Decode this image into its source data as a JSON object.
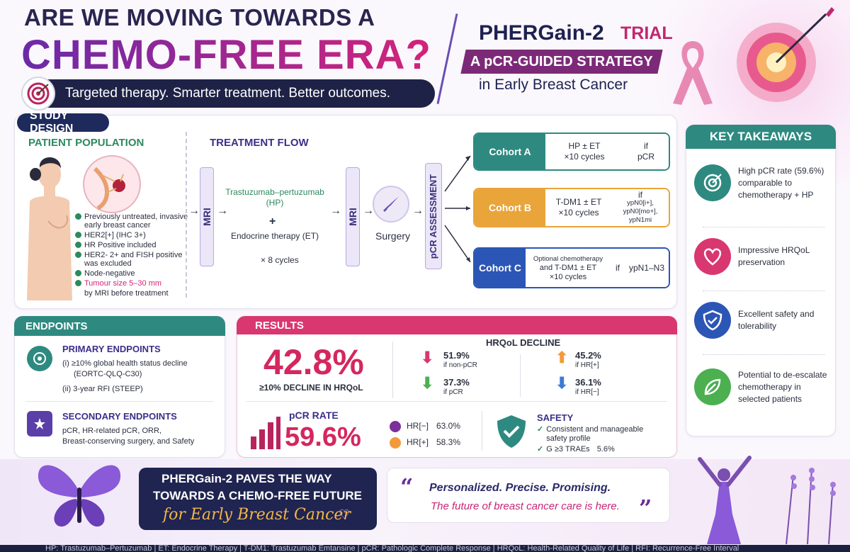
{
  "header": {
    "title_line1": "ARE WE MOVING TOWARDS A",
    "title_line2": "CHEMO-FREE ERA?",
    "tagline": "Targeted therapy. Smarter treatment. Better outcomes.",
    "trial_name": "PHERGain-2",
    "trial_suffix": "TRIAL",
    "strategy": "A pCR-GUIDED STRATEGY",
    "subtitle": "in Early Breast Cancer"
  },
  "study_design": {
    "label": "STUDY DESIGN",
    "patient_population_title": "PATIENT POPULATION",
    "criteria": [
      "Previously untreated, invasive early breast cancer",
      "HER2[+] (IHC 3+)",
      "HR Positive included",
      "HER2- 2+ and FISH positive was excluded",
      "Node-negative"
    ],
    "tumour_size": "Tumour size 5–30 mm",
    "tumour_size_note": "by MRI before treatment",
    "treatment_flow_title": "TREATMENT FLOW",
    "mri": "MRI",
    "hp": "Trastuzumab–pertuzumab (HP)",
    "plus": "+",
    "et": "Endocrine therapy (ET)",
    "cycles": "× 8 cycles",
    "surgery": "Surgery",
    "pcr_assessment": "pCR ASSESSMENT",
    "cohorts": [
      {
        "label": "Cohort A",
        "line1": "HP ± ET",
        "line2": "×10 cycles",
        "cond1": "if",
        "cond2": "pCR",
        "color": "#2e8a80"
      },
      {
        "label": "Cohort B",
        "line1": "T-DM1 ± ET",
        "line2": "×10 cycles",
        "cond1": "if",
        "cond2": "ypN0[i+], ypN0[mo+], ypN1mi",
        "color": "#e9a53a"
      },
      {
        "label": "Cohort C",
        "line1": "Optional chemotherapy",
        "line2": "and T-DM1 ± ET",
        "line3": "×10 cycles",
        "cond1": "if",
        "cond2": "ypN1–N3",
        "color": "#2c56b5"
      }
    ]
  },
  "key_takeaways": {
    "title": "KEY TAKEAWAYS",
    "items": [
      {
        "text": "High pCR rate (59.6%) comparable to chemotherapy + HP",
        "icon": "target-icon",
        "color": "#2e8a80"
      },
      {
        "text": "Impressive HRQoL preservation",
        "icon": "heart-icon",
        "color": "#d9376f"
      },
      {
        "text": "Excellent safety and tolerability",
        "icon": "shield-icon",
        "color": "#2c56b5"
      },
      {
        "text": "Potential to de-escalate chemotherapy in selected patients",
        "icon": "leaf-icon",
        "color": "#4caf50"
      }
    ]
  },
  "endpoints": {
    "title": "ENDPOINTS",
    "primary_title": "PRIMARY ENDPOINTS",
    "primary_1": "(i) ≥10% global health status decline",
    "primary_1b": "(EORTC-QLQ-C30)",
    "primary_2": "(ii) 3-year RFI (STEEP)",
    "secondary_title": "SECONDARY ENDPOINTS",
    "secondary_1": "pCR, HR-related pCR, ORR,",
    "secondary_2": "Breast-conserving surgery, and Safety"
  },
  "results": {
    "title": "RESULTS",
    "hrqol_decline_pct": "42.8%",
    "hrqol_decline_label": "≥10% DECLINE IN HRQoL",
    "hrqol_title": "HRQoL DECLINE",
    "non_pcr_value": "51.9%",
    "non_pcr_label": "if non-pCR",
    "pcr_value": "37.3%",
    "pcr_label": "if pCR",
    "hr_pos_value": "45.2%",
    "hr_pos_label": "if HR[+]",
    "hr_neg_value": "36.1%",
    "hr_neg_label": "if HR[−]",
    "pcr_rate_label": "pCR RATE",
    "pcr_rate": "59.6%",
    "hr_neg_pcr_label": "HR[−]",
    "hr_neg_pcr": "63.0%",
    "hr_pos_pcr_label": "HR[+]",
    "hr_pos_pcr": "58.3%",
    "safety_title": "SAFETY",
    "safety_1": "Consistent and manageable safety profile",
    "safety_2_label": "G ≥3 TRAEs",
    "safety_2_value": "5.6%"
  },
  "bottom": {
    "paves_1": "PHERGain-2 PAVES THE WAY",
    "paves_2": "TOWARDS A CHEMO-FREE FUTURE",
    "paves_3": "for Early Breast Cancer",
    "quote_1": "Personalized. Precise. Promising.",
    "quote_2": "The future of breast cancer care is here."
  },
  "footer": "HP: Trastuzumab–Pertuzumab  |  ET: Endocrine Therapy  |  T-DM1: Trastuzumab Emtansine  |  pCR: Pathologic Complete Response  |  HRQoL: Health-Related Quality of Life  |  RFI: Recurrence-Free Interval"
}
